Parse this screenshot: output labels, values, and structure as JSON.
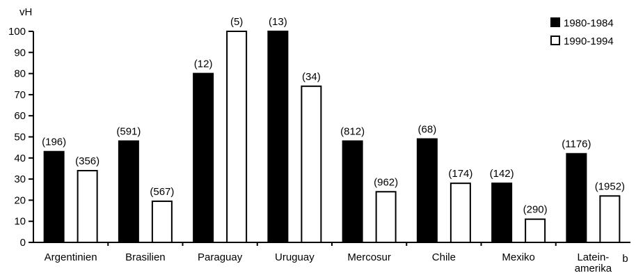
{
  "chart_data": {
    "type": "bar",
    "ylabel": "vH",
    "ylim": [
      0,
      100
    ],
    "yticks": [
      0,
      10,
      20,
      30,
      40,
      50,
      60,
      70,
      80,
      90,
      100
    ],
    "categories": [
      "Argentinien",
      "Brasilien",
      "Paraguay",
      "Uruguay",
      "Mercosur",
      "Chile",
      "Mexiko",
      "Lateinamerika"
    ],
    "category_label_lines": [
      [
        "Argentinien"
      ],
      [
        "Brasilien"
      ],
      [
        "Paraguay"
      ],
      [
        "Uruguay"
      ],
      [
        "Mercosur"
      ],
      [
        "Chile"
      ],
      [
        "Mexiko"
      ],
      [
        "Latein-",
        "amerika"
      ]
    ],
    "category_footnotes": [
      "",
      "",
      "",
      "",
      "",
      "",
      "",
      "b"
    ],
    "series": [
      {
        "name": "1980-1984",
        "color": "#000000",
        "values": [
          43,
          48,
          80,
          100,
          48,
          49,
          28,
          42
        ],
        "labels": [
          "(196)",
          "(591)",
          "(12)",
          "(13)",
          "(812)",
          "(68)",
          "(142)",
          "(1176)"
        ]
      },
      {
        "name": "1990-1994",
        "color": "#ffffff",
        "values": [
          34,
          19.5,
          100,
          74,
          24,
          28,
          11,
          22
        ],
        "labels": [
          "(356)",
          "(567)",
          "(5)",
          "(34)",
          "(962)",
          "(174)",
          "(290)",
          "(1952)"
        ]
      }
    ],
    "legend_position": "top-right",
    "grid": false
  }
}
